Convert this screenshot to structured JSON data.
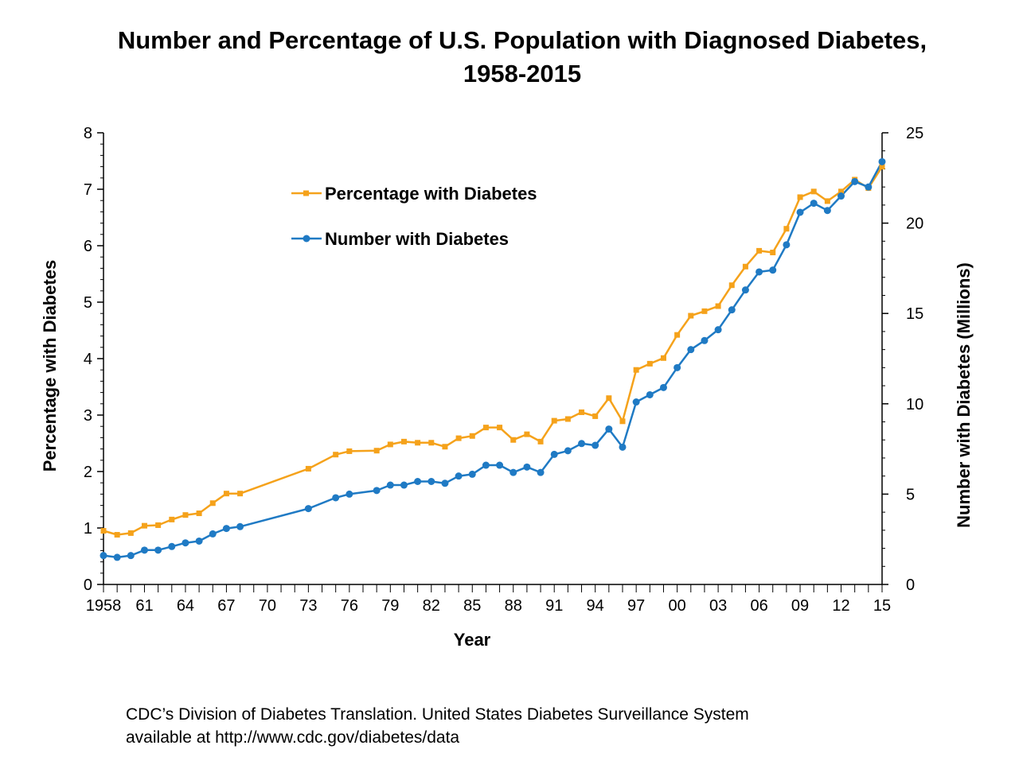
{
  "title_lines": [
    "Number and Percentage of U.S. Population with Diagnosed Diabetes,",
    "1958-2015"
  ],
  "source_lines": [
    "CDC’s Division of Diabetes Translation. United States Diabetes Surveillance System",
    "available at http://www.cdc.gov/diabetes/data"
  ],
  "colors": {
    "percentage": "#f5a21b",
    "number": "#1f7ac4",
    "axis": "#000000"
  },
  "chart_data": {
    "type": "line",
    "title": "Number and Percentage of U.S. Population with Diagnosed Diabetes, 1958-2015",
    "xlabel": "Year",
    "ylabel_left": "Percentage with Diabetes",
    "ylabel_right": "Number with Diabetes (Millions)",
    "y_left_lim": [
      0,
      8
    ],
    "y_left_ticks": [
      "0",
      "1",
      "2",
      "3",
      "4",
      "5",
      "6",
      "7",
      "8"
    ],
    "y_right_lim": [
      0,
      25
    ],
    "y_right_ticks": [
      "0",
      "5",
      "10",
      "15",
      "20",
      "25"
    ],
    "x_tick_labels": [
      {
        "year": 1958,
        "label": "1958"
      },
      {
        "year": 1961,
        "label": "61"
      },
      {
        "year": 1964,
        "label": "64"
      },
      {
        "year": 1967,
        "label": "67"
      },
      {
        "year": 1970,
        "label": "70"
      },
      {
        "year": 1973,
        "label": "73"
      },
      {
        "year": 1976,
        "label": "76"
      },
      {
        "year": 1979,
        "label": "79"
      },
      {
        "year": 1982,
        "label": "82"
      },
      {
        "year": 1985,
        "label": "85"
      },
      {
        "year": 1988,
        "label": "88"
      },
      {
        "year": 1991,
        "label": "91"
      },
      {
        "year": 1994,
        "label": "94"
      },
      {
        "year": 1997,
        "label": "97"
      },
      {
        "year": 2000,
        "label": "00"
      },
      {
        "year": 2003,
        "label": "03"
      },
      {
        "year": 2006,
        "label": "06"
      },
      {
        "year": 2009,
        "label": "09"
      },
      {
        "year": 2012,
        "label": "12"
      },
      {
        "year": 2015,
        "label": "15"
      }
    ],
    "grid": false,
    "legend_position": "top-left",
    "series": [
      {
        "name": "Percentage with Diabetes",
        "axis": "left",
        "points": [
          [
            1958,
            0.95
          ],
          [
            1959,
            0.88
          ],
          [
            1960,
            0.91
          ],
          [
            1961,
            1.04
          ],
          [
            1962,
            1.05
          ],
          [
            1963,
            1.15
          ],
          [
            1964,
            1.23
          ],
          [
            1965,
            1.26
          ],
          [
            1966,
            1.44
          ],
          [
            1967,
            1.61
          ],
          [
            1968,
            1.61
          ],
          [
            1973,
            2.05
          ],
          [
            1975,
            2.3
          ],
          [
            1976,
            2.36
          ],
          [
            1978,
            2.37
          ],
          [
            1979,
            2.48
          ],
          [
            1980,
            2.53
          ],
          [
            1981,
            2.51
          ],
          [
            1982,
            2.51
          ],
          [
            1983,
            2.44
          ],
          [
            1984,
            2.59
          ],
          [
            1985,
            2.63
          ],
          [
            1986,
            2.78
          ],
          [
            1987,
            2.78
          ],
          [
            1988,
            2.56
          ],
          [
            1989,
            2.66
          ],
          [
            1990,
            2.53
          ],
          [
            1991,
            2.9
          ],
          [
            1992,
            2.93
          ],
          [
            1993,
            3.05
          ],
          [
            1994,
            2.98
          ],
          [
            1995,
            3.3
          ],
          [
            1996,
            2.89
          ],
          [
            1997,
            3.8
          ],
          [
            1998,
            3.91
          ],
          [
            1999,
            4.01
          ],
          [
            2000,
            4.42
          ],
          [
            2001,
            4.76
          ],
          [
            2002,
            4.84
          ],
          [
            2003,
            4.93
          ],
          [
            2004,
            5.3
          ],
          [
            2005,
            5.63
          ],
          [
            2006,
            5.91
          ],
          [
            2007,
            5.88
          ],
          [
            2008,
            6.3
          ],
          [
            2009,
            6.86
          ],
          [
            2010,
            6.96
          ],
          [
            2011,
            6.79
          ],
          [
            2012,
            6.96
          ],
          [
            2013,
            7.17
          ],
          [
            2014,
            7.02
          ],
          [
            2015,
            7.4
          ]
        ]
      },
      {
        "name": "Number with Diabetes",
        "axis": "right",
        "points": [
          [
            1958,
            1.6
          ],
          [
            1959,
            1.5
          ],
          [
            1960,
            1.6
          ],
          [
            1961,
            1.9
          ],
          [
            1962,
            1.9
          ],
          [
            1963,
            2.1
          ],
          [
            1964,
            2.3
          ],
          [
            1965,
            2.4
          ],
          [
            1966,
            2.8
          ],
          [
            1967,
            3.1
          ],
          [
            1968,
            3.2
          ],
          [
            1973,
            4.2
          ],
          [
            1975,
            4.8
          ],
          [
            1976,
            5.0
          ],
          [
            1978,
            5.2
          ],
          [
            1979,
            5.5
          ],
          [
            1980,
            5.5
          ],
          [
            1981,
            5.7
          ],
          [
            1982,
            5.7
          ],
          [
            1983,
            5.6
          ],
          [
            1984,
            6.0
          ],
          [
            1985,
            6.1
          ],
          [
            1986,
            6.6
          ],
          [
            1987,
            6.6
          ],
          [
            1988,
            6.2
          ],
          [
            1989,
            6.5
          ],
          [
            1990,
            6.2
          ],
          [
            1991,
            7.2
          ],
          [
            1992,
            7.4
          ],
          [
            1993,
            7.8
          ],
          [
            1994,
            7.7
          ],
          [
            1995,
            8.6
          ],
          [
            1996,
            7.6
          ],
          [
            1997,
            10.1
          ],
          [
            1998,
            10.5
          ],
          [
            1999,
            10.9
          ],
          [
            2000,
            12.0
          ],
          [
            2001,
            13.0
          ],
          [
            2002,
            13.5
          ],
          [
            2003,
            14.1
          ],
          [
            2004,
            15.2
          ],
          [
            2005,
            16.3
          ],
          [
            2006,
            17.3
          ],
          [
            2007,
            17.4
          ],
          [
            2008,
            18.8
          ],
          [
            2009,
            20.6
          ],
          [
            2010,
            21.1
          ],
          [
            2011,
            20.7
          ],
          [
            2012,
            21.5
          ],
          [
            2013,
            22.3
          ],
          [
            2014,
            22.0
          ],
          [
            2015,
            23.4
          ]
        ]
      }
    ]
  }
}
